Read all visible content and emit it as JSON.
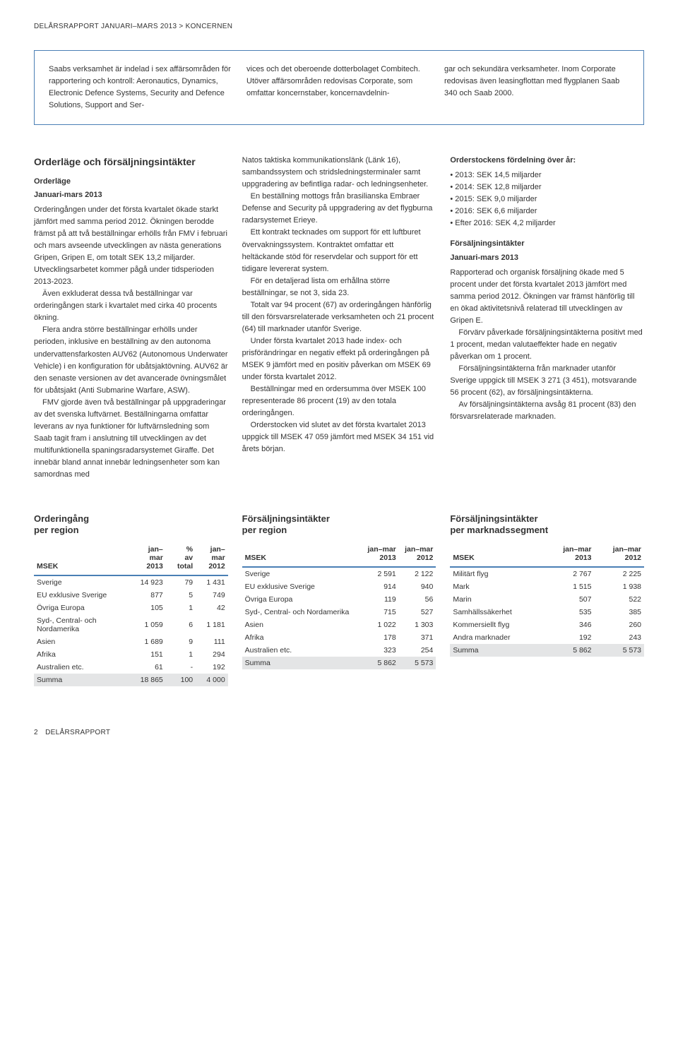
{
  "header": "DELÅRSRAPPORT JANUARI–MARS 2013 > KONCERNEN",
  "infoBox": {
    "col1": "Saabs verksamhet är indelad i sex affärsområden för rapportering och kontroll: Aeronautics, Dynamics, Electronic Defence Systems, Security and Defence Solutions, Support and Ser-",
    "col2": "vices och det oberoende dotterbolaget Combitech.\n Utöver affärsområden redovisas Corporate, som omfattar koncernstaber, koncernavdelnin-",
    "col3": "gar och sekundära verksamheter. Inom Corporate redovisas även leasingflottan med flygplanen Saab 340 och Saab 2000."
  },
  "main": {
    "title": "Orderläge och försäljningsintäkter",
    "col1": {
      "sub1": "Orderläge",
      "sub2": "Januari-mars 2013",
      "paragraphs": [
        "Orderingången under det första kvartalet ökade starkt jämfört med samma period 2012. Ökningen berodde främst på att två beställningar erhölls från FMV i februari och mars avseende utvecklingen av nästa generations Gripen, Gripen E, om totalt SEK 13,2 miljarder. Utvecklingsarbetet kommer pågå under tidsperioden 2013-2023.",
        "Även exkluderat dessa två beställningar var orderingången stark i kvartalet med cirka 40 procents ökning.",
        "Flera andra större beställningar erhölls under perioden, inklusive en beställning av den autonoma undervattensfarkosten AUV62 (Autonomous Underwater Vehicle) i en konfiguration för ubåtsjaktövning. AUV62 är den senaste versionen av det avancerade övningsmålet för ubåtsjakt (Anti Submarine Warfare, ASW).",
        "FMV gjorde även två beställningar på uppgraderingar av det svenska luftvärnet. Beställningarna omfattar leverans av nya funktioner för luftvärnsledning som Saab tagit fram i anslutning till utvecklingen av det multifunktionella spaningsradarsystemet Giraffe. Det innebär bland annat innebär ledningsenheter som kan samordnas med"
      ]
    },
    "col2": {
      "paragraphs": [
        "Natos taktiska kommunikationslänk (Länk 16), sambandssystem och stridsledningsterminaler samt uppgradering av befintliga radar- och ledningsenheter.",
        "En beställning mottogs från brasilianska Embraer Defense and Security på uppgradering av det flygburna radarsystemet Erieye.",
        "Ett kontrakt tecknades om support för ett luftburet övervakningssystem. Kontraktet omfattar ett heltäckande stöd för reservdelar och support för ett tidigare levererat system.",
        "För en detaljerad lista om erhållna större beställningar, se not 3, sida 23.",
        "Totalt var 94 procent (67) av orderingången hänförlig till den försvarsrelaterade verksamheten och 21 procent (64) till marknader utanför Sverige.",
        "Under första kvartalet 2013 hade index- och prisförändringar en negativ effekt på orderingången på MSEK 9 jämfört med en positiv påverkan om MSEK 69 under första kvartalet 2012.",
        "Beställningar med en ordersumma över MSEK 100 representerade 86 procent (19) av den totala orderingången.",
        "Orderstocken vid slutet av det första kvartalet 2013 uppgick till MSEK 47 059 jämfört med MSEK 34 151 vid årets början."
      ]
    },
    "col3": {
      "stockTitle": "Orderstockens fördelning över år:",
      "bullets": [
        "• 2013: SEK 14,5 miljarder",
        "• 2014: SEK 12,8 miljarder",
        "• 2015: SEK 9,0 miljarder",
        "• 2016: SEK 6,6 miljarder",
        "• Efter 2016: SEK 4,2 miljarder"
      ],
      "salesTitle": "Försäljningsintäkter",
      "salesSub": "Januari-mars 2013",
      "paragraphs": [
        "Rapporterad och organisk försäljning ökade med 5 procent under det första kvartalet 2013 jämfört med samma period 2012. Ökningen var främst hänförlig till en ökad aktivitetsnivå relaterad till utvecklingen av Gripen E.",
        "Förvärv påverkade försäljningsintäkterna positivt med 1 procent, medan valutaeffekter hade en negativ påverkan om 1 procent.",
        "Försäljningsintäkterna från marknader utanför Sverige uppgick till MSEK 3 271 (3 451), motsvarande 56 procent (62), av försäljningsintäkterna.",
        "Av försäljningsintäkterna avsåg 81 procent (83) den försvarsrelaterade marknaden."
      ]
    }
  },
  "tables": {
    "t1": {
      "title": "Orderingång per region",
      "headers": [
        "MSEK",
        "jan–mar 2013",
        "% av total",
        "jan–mar 2012"
      ],
      "rows": [
        [
          "Sverige",
          "14 923",
          "79",
          "1 431"
        ],
        [
          "EU exklusive Sverige",
          "877",
          "5",
          "749"
        ],
        [
          "Övriga Europa",
          "105",
          "1",
          "42"
        ],
        [
          "Syd-, Central- och Nordamerika",
          "1 059",
          "6",
          "1 181"
        ],
        [
          "Asien",
          "1 689",
          "9",
          "111"
        ],
        [
          "Afrika",
          "151",
          "1",
          "294"
        ],
        [
          "Australien etc.",
          "61",
          "-",
          "192"
        ]
      ],
      "sum": [
        "Summa",
        "18 865",
        "100",
        "4 000"
      ]
    },
    "t2": {
      "title": "Försäljningsintäkter per region",
      "headers": [
        "MSEK",
        "jan–mar 2013",
        "jan–mar 2012"
      ],
      "rows": [
        [
          "Sverige",
          "2 591",
          "2 122"
        ],
        [
          "EU exklusive Sverige",
          "914",
          "940"
        ],
        [
          "Övriga Europa",
          "119",
          "56"
        ],
        [
          "Syd-, Central- och Nordamerika",
          "715",
          "527"
        ],
        [
          "Asien",
          "1 022",
          "1 303"
        ],
        [
          "Afrika",
          "178",
          "371"
        ],
        [
          "Australien etc.",
          "323",
          "254"
        ]
      ],
      "sum": [
        "Summa",
        "5 862",
        "5 573"
      ]
    },
    "t3": {
      "title": "Försäljningsintäkter per marknadssegment",
      "headers": [
        "MSEK",
        "jan–mar 2013",
        "jan–mar 2012"
      ],
      "rows": [
        [
          "Militärt flyg",
          "2 767",
          "2 225"
        ],
        [
          "Mark",
          "1 515",
          "1 938"
        ],
        [
          "Marin",
          "507",
          "522"
        ],
        [
          "Samhällssäkerhet",
          "535",
          "385"
        ],
        [
          "Kommersiellt flyg",
          "346",
          "260"
        ],
        [
          "Andra marknader",
          "192",
          "243"
        ]
      ],
      "sum": [
        "Summa",
        "5 862",
        "5 573"
      ]
    }
  },
  "footer": "2 DELÅRSRAPPORT"
}
